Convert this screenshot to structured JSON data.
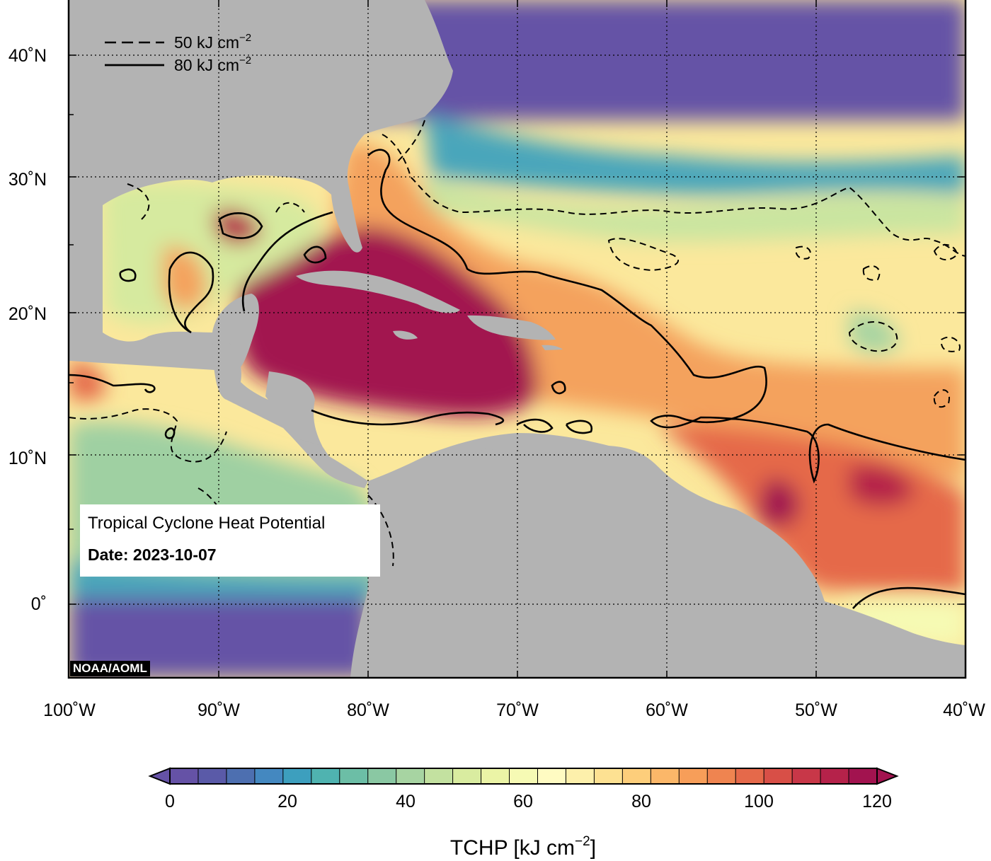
{
  "map": {
    "title": "Tropical Cyclone Heat Potential",
    "date_label": "Date:",
    "date_value": "2023-10-07",
    "credit": "NOAA/AOML",
    "lon_ticks": [
      "100˚W",
      "90˚W",
      "80˚W",
      "70˚W",
      "60˚W",
      "50˚W",
      "40˚W"
    ],
    "lat_ticks": [
      "40˚N",
      "30˚N",
      "20˚N",
      "10˚N",
      "0˚"
    ],
    "lon_range": [
      -100,
      -40
    ],
    "lat_range": [
      -5,
      44
    ],
    "contour_legend": [
      {
        "style": "dashed",
        "value": "50",
        "unit": "kJ cm",
        "exp": "−2"
      },
      {
        "style": "solid",
        "value": "80",
        "unit": "kJ cm",
        "exp": "−2"
      }
    ],
    "land_color": "#b3b3b3"
  },
  "colorbar": {
    "label_main": "TCHP [kJ cm",
    "label_exp": "−2",
    "label_close": "]",
    "tick_labels": [
      "0",
      "20",
      "40",
      "60",
      "80",
      "100",
      "120"
    ],
    "range": [
      0,
      120
    ],
    "colors": [
      "#6552a6",
      "#5a5aa8",
      "#4d6fb0",
      "#4488c0",
      "#3d9fbe",
      "#4fb3b0",
      "#6cbea6",
      "#8ac8a3",
      "#a7d4a2",
      "#c3e1a0",
      "#d9eca0",
      "#ebf4a6",
      "#f6fab4",
      "#fffbc2",
      "#fdf0ab",
      "#fde192",
      "#fdce7b",
      "#fbb769",
      "#f79e59",
      "#ef8450",
      "#e5694a",
      "#d84f47",
      "#c83748",
      "#b5224a",
      "#a2134f"
    ]
  }
}
